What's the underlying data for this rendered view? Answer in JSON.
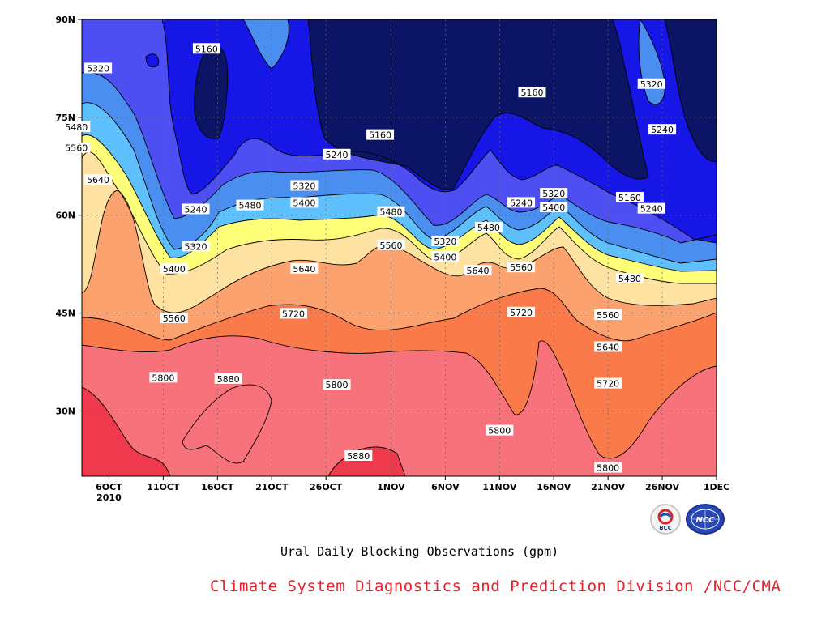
{
  "chart_data": {
    "type": "heatmap",
    "title": "Ural Daily Blocking Observations (gpm)",
    "xlabel": "",
    "ylabel": "",
    "x_ticks": [
      "6OCT",
      "11OCT",
      "16OCT",
      "21OCT",
      "26OCT",
      "1NOV",
      "6NOV",
      "11NOV",
      "16NOV",
      "21NOV",
      "26NOV",
      "1DEC"
    ],
    "x_tick_year": "2010",
    "x_range": [
      "2010-10-06",
      "2010-12-01"
    ],
    "y_ticks": [
      "30N",
      "45N",
      "60N",
      "75N",
      "90N"
    ],
    "y_tick_values": [
      30,
      45,
      60,
      75,
      90
    ],
    "y_range": [
      20,
      90
    ],
    "grid": true,
    "contour_levels": [
      5160,
      5240,
      5320,
      5400,
      5480,
      5560,
      5640,
      5720,
      5800,
      5880
    ],
    "fill_colors": [
      "#0c1466",
      "#1616e6",
      "#4d4ff2",
      "#4a8ef0",
      "#5ec0fc",
      "#fefe78",
      "#fde2a2",
      "#fca26e",
      "#fb7a4a",
      "#f8727c",
      "#ef3a4e"
    ],
    "contour_labels": [
      {
        "date": "2010-10-15",
        "lat": 85.5,
        "value": "5160"
      },
      {
        "date": "2010-10-05",
        "lat": 82.5,
        "value": "5320"
      },
      {
        "date": "2010-10-03",
        "lat": 73.5,
        "value": "5480"
      },
      {
        "date": "2010-10-03",
        "lat": 70.3,
        "value": "5560"
      },
      {
        "date": "2010-10-05",
        "lat": 65.4,
        "value": "5640"
      },
      {
        "date": "2010-10-31",
        "lat": 72.3,
        "value": "5160"
      },
      {
        "date": "2010-10-27",
        "lat": 69.3,
        "value": "5240"
      },
      {
        "date": "2010-10-14",
        "lat": 60.9,
        "value": "5240"
      },
      {
        "date": "2010-10-24",
        "lat": 64.5,
        "value": "5320"
      },
      {
        "date": "2010-10-24",
        "lat": 61.9,
        "value": "5400"
      },
      {
        "date": "2010-10-19",
        "lat": 61.5,
        "value": "5480"
      },
      {
        "date": "2010-10-14",
        "lat": 55.2,
        "value": "5320"
      },
      {
        "date": "2010-10-12",
        "lat": 51.8,
        "value": "5400"
      },
      {
        "date": "2010-10-24",
        "lat": 51.8,
        "value": "5640"
      },
      {
        "date": "2010-10-12",
        "lat": 44.2,
        "value": "5560"
      },
      {
        "date": "2010-10-23",
        "lat": 44.9,
        "value": "5720"
      },
      {
        "date": "2010-11-01",
        "lat": 60.5,
        "value": "5480"
      },
      {
        "date": "2010-11-01",
        "lat": 55.4,
        "value": "5560"
      },
      {
        "date": "2010-11-06",
        "lat": 56.0,
        "value": "5320"
      },
      {
        "date": "2010-11-06",
        "lat": 53.6,
        "value": "5400"
      },
      {
        "date": "2010-11-10",
        "lat": 58.1,
        "value": "5480"
      },
      {
        "date": "2010-11-09",
        "lat": 51.5,
        "value": "5640"
      },
      {
        "date": "2010-11-13",
        "lat": 52.0,
        "value": "5560"
      },
      {
        "date": "2010-11-13",
        "lat": 45.1,
        "value": "5720"
      },
      {
        "date": "2010-11-13",
        "lat": 61.9,
        "value": "5240"
      },
      {
        "date": "2010-11-14",
        "lat": 78.8,
        "value": "5160"
      },
      {
        "date": "2010-11-16",
        "lat": 63.3,
        "value": "5320"
      },
      {
        "date": "2010-11-16",
        "lat": 61.2,
        "value": "5400"
      },
      {
        "date": "2010-11-23",
        "lat": 62.7,
        "value": "5160"
      },
      {
        "date": "2010-11-25",
        "lat": 61.0,
        "value": "5240"
      },
      {
        "date": "2010-11-25",
        "lat": 80.1,
        "value": "5320"
      },
      {
        "date": "2010-11-26",
        "lat": 73.1,
        "value": "5240"
      },
      {
        "date": "2010-11-23",
        "lat": 50.3,
        "value": "5480"
      },
      {
        "date": "2010-11-21",
        "lat": 44.7,
        "value": "5560"
      },
      {
        "date": "2010-11-21",
        "lat": 39.8,
        "value": "5640"
      },
      {
        "date": "2010-11-21",
        "lat": 34.2,
        "value": "5720"
      },
      {
        "date": "2010-11-21",
        "lat": 21.3,
        "value": "5800"
      },
      {
        "date": "2010-10-11",
        "lat": 35.1,
        "value": "5800"
      },
      {
        "date": "2010-10-17",
        "lat": 34.9,
        "value": "5880"
      },
      {
        "date": "2010-10-27",
        "lat": 34.0,
        "value": "5800"
      },
      {
        "date": "2010-10-29",
        "lat": 23.1,
        "value": "5880"
      },
      {
        "date": "2010-11-11",
        "lat": 27.0,
        "value": "5800"
      }
    ]
  },
  "caption": {
    "title": "Ural Daily Blocking Observations (gpm)",
    "credit": "Climate System Diagnostics and Prediction Division /NCC/CMA"
  },
  "logos": {
    "left": "BCC",
    "right": "NCC"
  }
}
